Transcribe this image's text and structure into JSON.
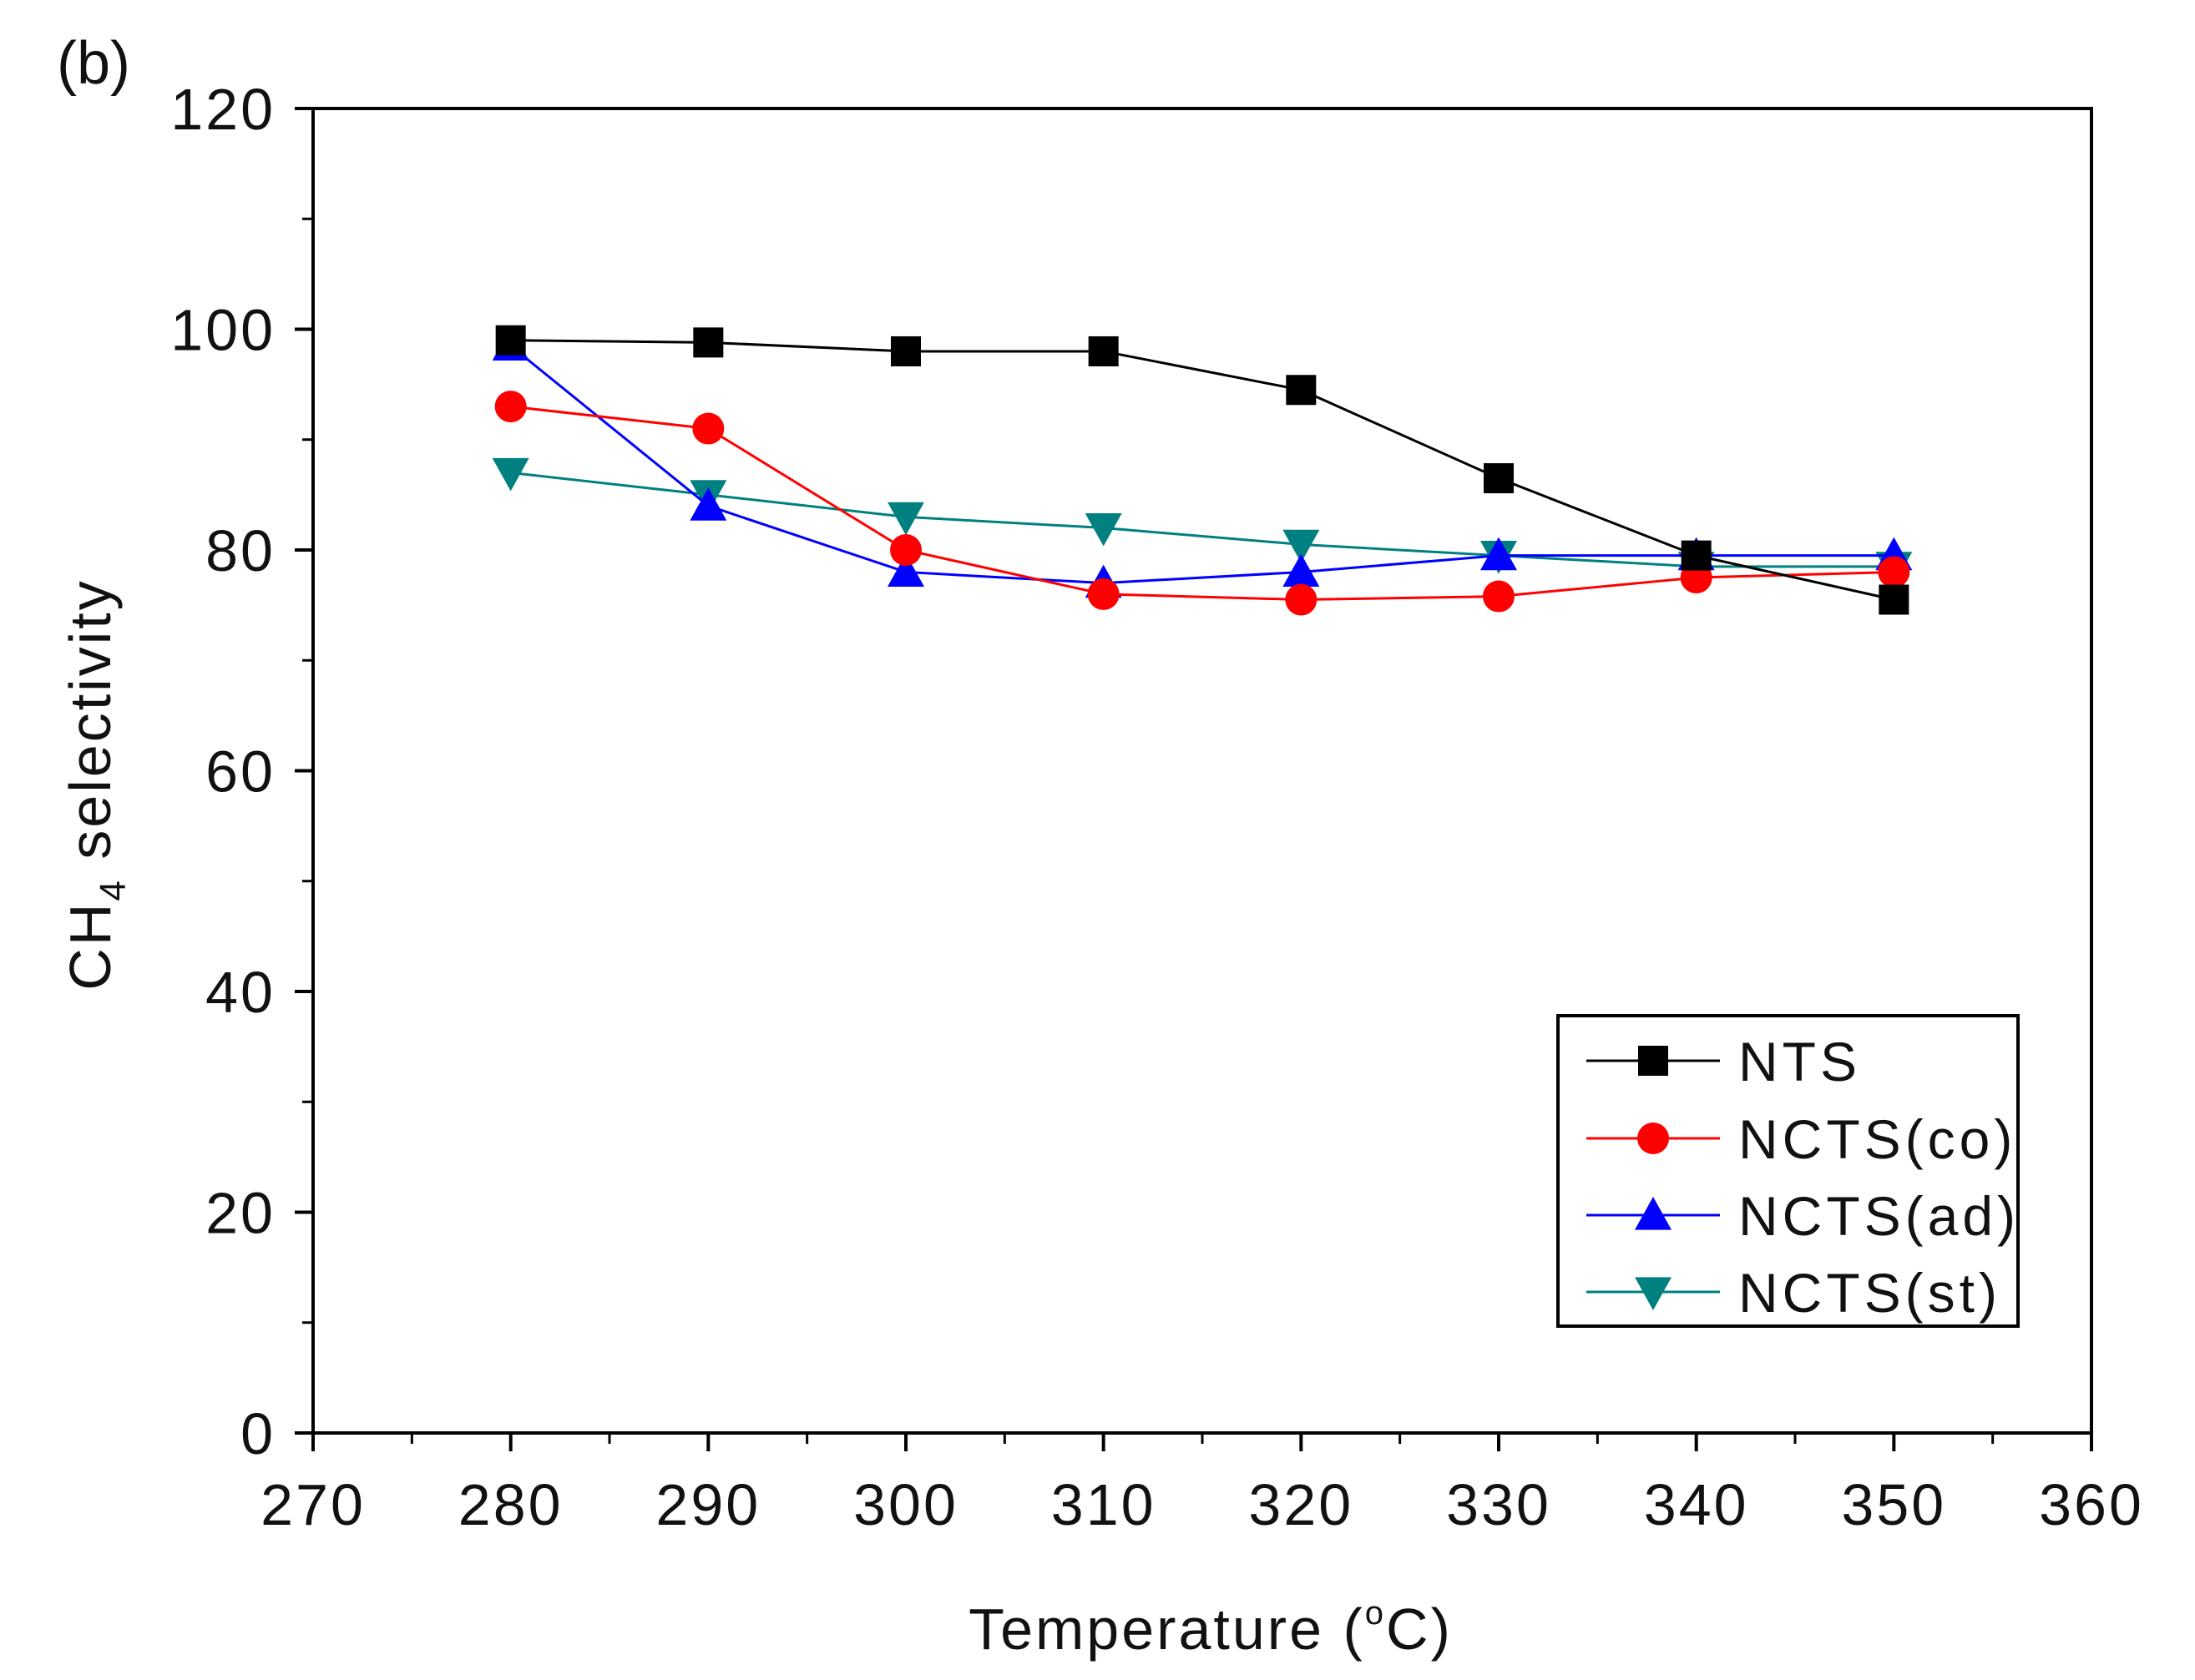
{
  "chart_data": {
    "type": "line",
    "panel_label": "(b)",
    "xlabel_main": "Temperature (",
    "xlabel_degree": "o",
    "xlabel_unit": "C)",
    "ylabel_main": "CH",
    "ylabel_subscript": "4",
    "ylabel_rest": " selectivity",
    "xlim": [
      270,
      360
    ],
    "ylim": [
      0,
      120
    ],
    "xticks": [
      270,
      280,
      290,
      300,
      310,
      320,
      330,
      340,
      350,
      360
    ],
    "yticks": [
      0,
      20,
      40,
      60,
      80,
      100,
      120
    ],
    "x": [
      280,
      290,
      300,
      310,
      320,
      330,
      340,
      350
    ],
    "legend_position": "lower-right",
    "series": [
      {
        "name": "NTS",
        "color": "#000000",
        "marker": "square",
        "values": [
          99.0,
          98.8,
          98.0,
          98.0,
          94.5,
          86.5,
          79.5,
          75.5
        ]
      },
      {
        "name": "NCTS(co)",
        "color": "#ff0000",
        "marker": "circle",
        "values": [
          93.0,
          91.0,
          80.0,
          76.0,
          75.5,
          75.8,
          77.5,
          78.0
        ]
      },
      {
        "name": "NCTS(ad)",
        "color": "#0000ff",
        "marker": "triangle-up",
        "values": [
          98.5,
          84.0,
          78.0,
          77.0,
          78.0,
          79.5,
          79.5,
          79.5
        ]
      },
      {
        "name": "NCTS(st)",
        "color": "#008080",
        "marker": "triangle-down",
        "values": [
          87.0,
          85.0,
          83.0,
          82.0,
          80.5,
          79.5,
          78.5,
          78.5
        ]
      }
    ]
  }
}
